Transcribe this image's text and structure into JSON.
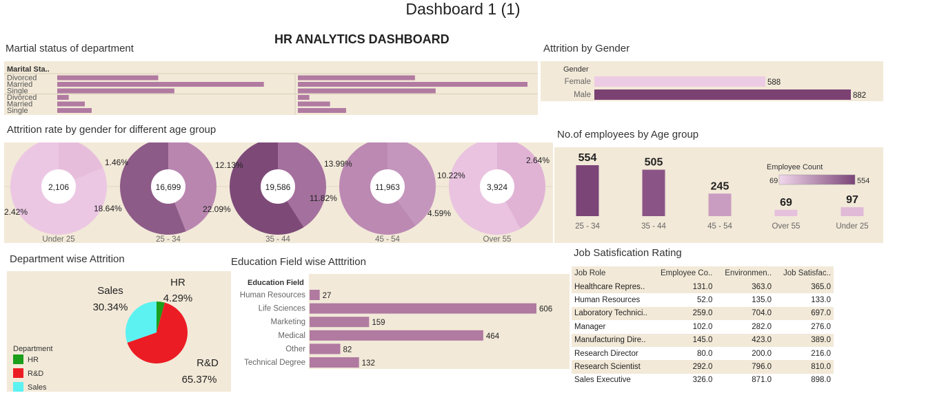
{
  "page_title": "Dashboard 1 (1)",
  "dashboard_title": "HR ANALYTICS DASHBOARD",
  "panels": {
    "marital": "Martial status of department",
    "attrition_gender": "Attrition by Gender",
    "attrition_age": "Attrition rate by gender for  different age group",
    "emp_age": "No.of employees by Age group",
    "dept": "Department wise Attrition",
    "edu": "Education Field wise Atttrition",
    "job": "Job Satisfication Rating"
  },
  "chart_data": [
    {
      "id": "marital",
      "type": "bar",
      "header": "Marital Sta..",
      "rows": [
        "Divorced",
        "Married",
        "Single",
        "Divorced",
        "Married",
        "Single"
      ],
      "series": [
        {
          "values": [
            0.44,
            0.9,
            0.51,
            0.05,
            0.12,
            0.15
          ]
        },
        {
          "values": [
            0.51,
            1.0,
            0.6,
            0.05,
            0.14,
            0.21
          ]
        }
      ],
      "color": "#b07aa1"
    },
    {
      "id": "attrition_gender",
      "type": "bar",
      "header": "Gender",
      "categories": [
        "Female",
        "Male"
      ],
      "values": [
        588,
        882
      ],
      "labels": [
        "588",
        "882"
      ],
      "colors": [
        "#eccbe4",
        "#7b4173"
      ],
      "xlim": [
        0,
        882
      ]
    },
    {
      "id": "attrition_age",
      "type": "pie",
      "groups": [
        {
          "name": "Under 25",
          "center": "2,106",
          "slices": [
            {
              "label": "1.46%",
              "pct": 18.64
            },
            {
              "label": "2.42%",
              "pct": 81.36
            }
          ],
          "colors": [
            "#e6bedb",
            "#ecc7e3"
          ],
          "labels": [
            "1.46%",
            "18.64%",
            "2.42%"
          ]
        },
        {
          "name": "25 - 34",
          "center": "16,699",
          "slices": [
            {
              "pct": 44
            },
            {
              "pct": 56
            }
          ],
          "colors": [
            "#b986b0",
            "#8d5b88"
          ],
          "labels": [
            "12.13%",
            "22.09%"
          ]
        },
        {
          "name": "35 - 44",
          "center": "19,586",
          "slices": [
            {
              "pct": 41
            },
            {
              "pct": 59
            }
          ],
          "colors": [
            "#a4709d",
            "#7d4a78"
          ],
          "labels": [
            "13.99%",
            "11.82%"
          ]
        },
        {
          "name": "45 - 54",
          "center": "11,963",
          "slices": [
            {
              "pct": 40
            },
            {
              "pct": 60
            }
          ],
          "colors": [
            "#c596bd",
            "#bc89b3"
          ],
          "labels": [
            "10.22%",
            "4.59%"
          ]
        },
        {
          "name": "Over 55",
          "center": "3,924",
          "slices": [
            {
              "pct": 42
            },
            {
              "pct": 58
            }
          ],
          "colors": [
            "#e0b3d5",
            "#e9c3e0"
          ],
          "labels": [
            "2.64%"
          ]
        }
      ]
    },
    {
      "id": "emp_age",
      "type": "bar",
      "categories": [
        "25 - 34",
        "35 - 44",
        "45 - 54",
        "Over 55",
        "Under 25"
      ],
      "values": [
        554,
        505,
        245,
        69,
        97
      ],
      "labels": [
        "554",
        "505",
        "245",
        "69",
        "97"
      ],
      "colors": [
        "#7b4577",
        "#8a5586",
        "#c99dc1",
        "#e6c1dd",
        "#e1bad8"
      ],
      "legend": {
        "title": "Employee Count",
        "min": "69",
        "max": "554"
      },
      "ylim": [
        0,
        554
      ]
    },
    {
      "id": "dept",
      "type": "pie",
      "slices": [
        {
          "name": "HR",
          "pct": 4.29,
          "label": "4.29%",
          "color": "#1b9e1b"
        },
        {
          "name": "R&D",
          "pct": 65.37,
          "label": "65.37%",
          "color": "#ec1c24"
        },
        {
          "name": "Sales",
          "pct": 30.34,
          "label": "30.34%",
          "color": "#5cf2f2"
        }
      ],
      "legend_title": "Department"
    },
    {
      "id": "edu",
      "type": "bar",
      "header": "Education Field",
      "categories": [
        "Human Resources",
        "Life Sciences",
        "Marketing",
        "Medical",
        "Other",
        "Technical Degree"
      ],
      "values": [
        27,
        606,
        159,
        464,
        82,
        132
      ],
      "labels": [
        "27",
        "606",
        "159",
        "464",
        "82",
        "132"
      ],
      "color": "#b07aa1",
      "xlim": [
        0,
        606
      ]
    }
  ],
  "job_table": {
    "columns": [
      "Job Role",
      "Employee Co..",
      "Environmen..",
      "Job Satisfac.."
    ],
    "rows": [
      [
        "Healthcare Repres..",
        "131.0",
        "363.0",
        "365.0"
      ],
      [
        "Human Resources",
        "52.0",
        "135.0",
        "133.0"
      ],
      [
        "Laboratory Technici..",
        "259.0",
        "704.0",
        "697.0"
      ],
      [
        "Manager",
        "102.0",
        "282.0",
        "276.0"
      ],
      [
        "Manufacturing Dire..",
        "145.0",
        "423.0",
        "389.0"
      ],
      [
        "Research Director",
        "80.0",
        "200.0",
        "216.0"
      ],
      [
        "Research Scientist",
        "292.0",
        "796.0",
        "810.0"
      ],
      [
        "Sales Executive",
        "326.0",
        "871.0",
        "898.0"
      ]
    ]
  }
}
